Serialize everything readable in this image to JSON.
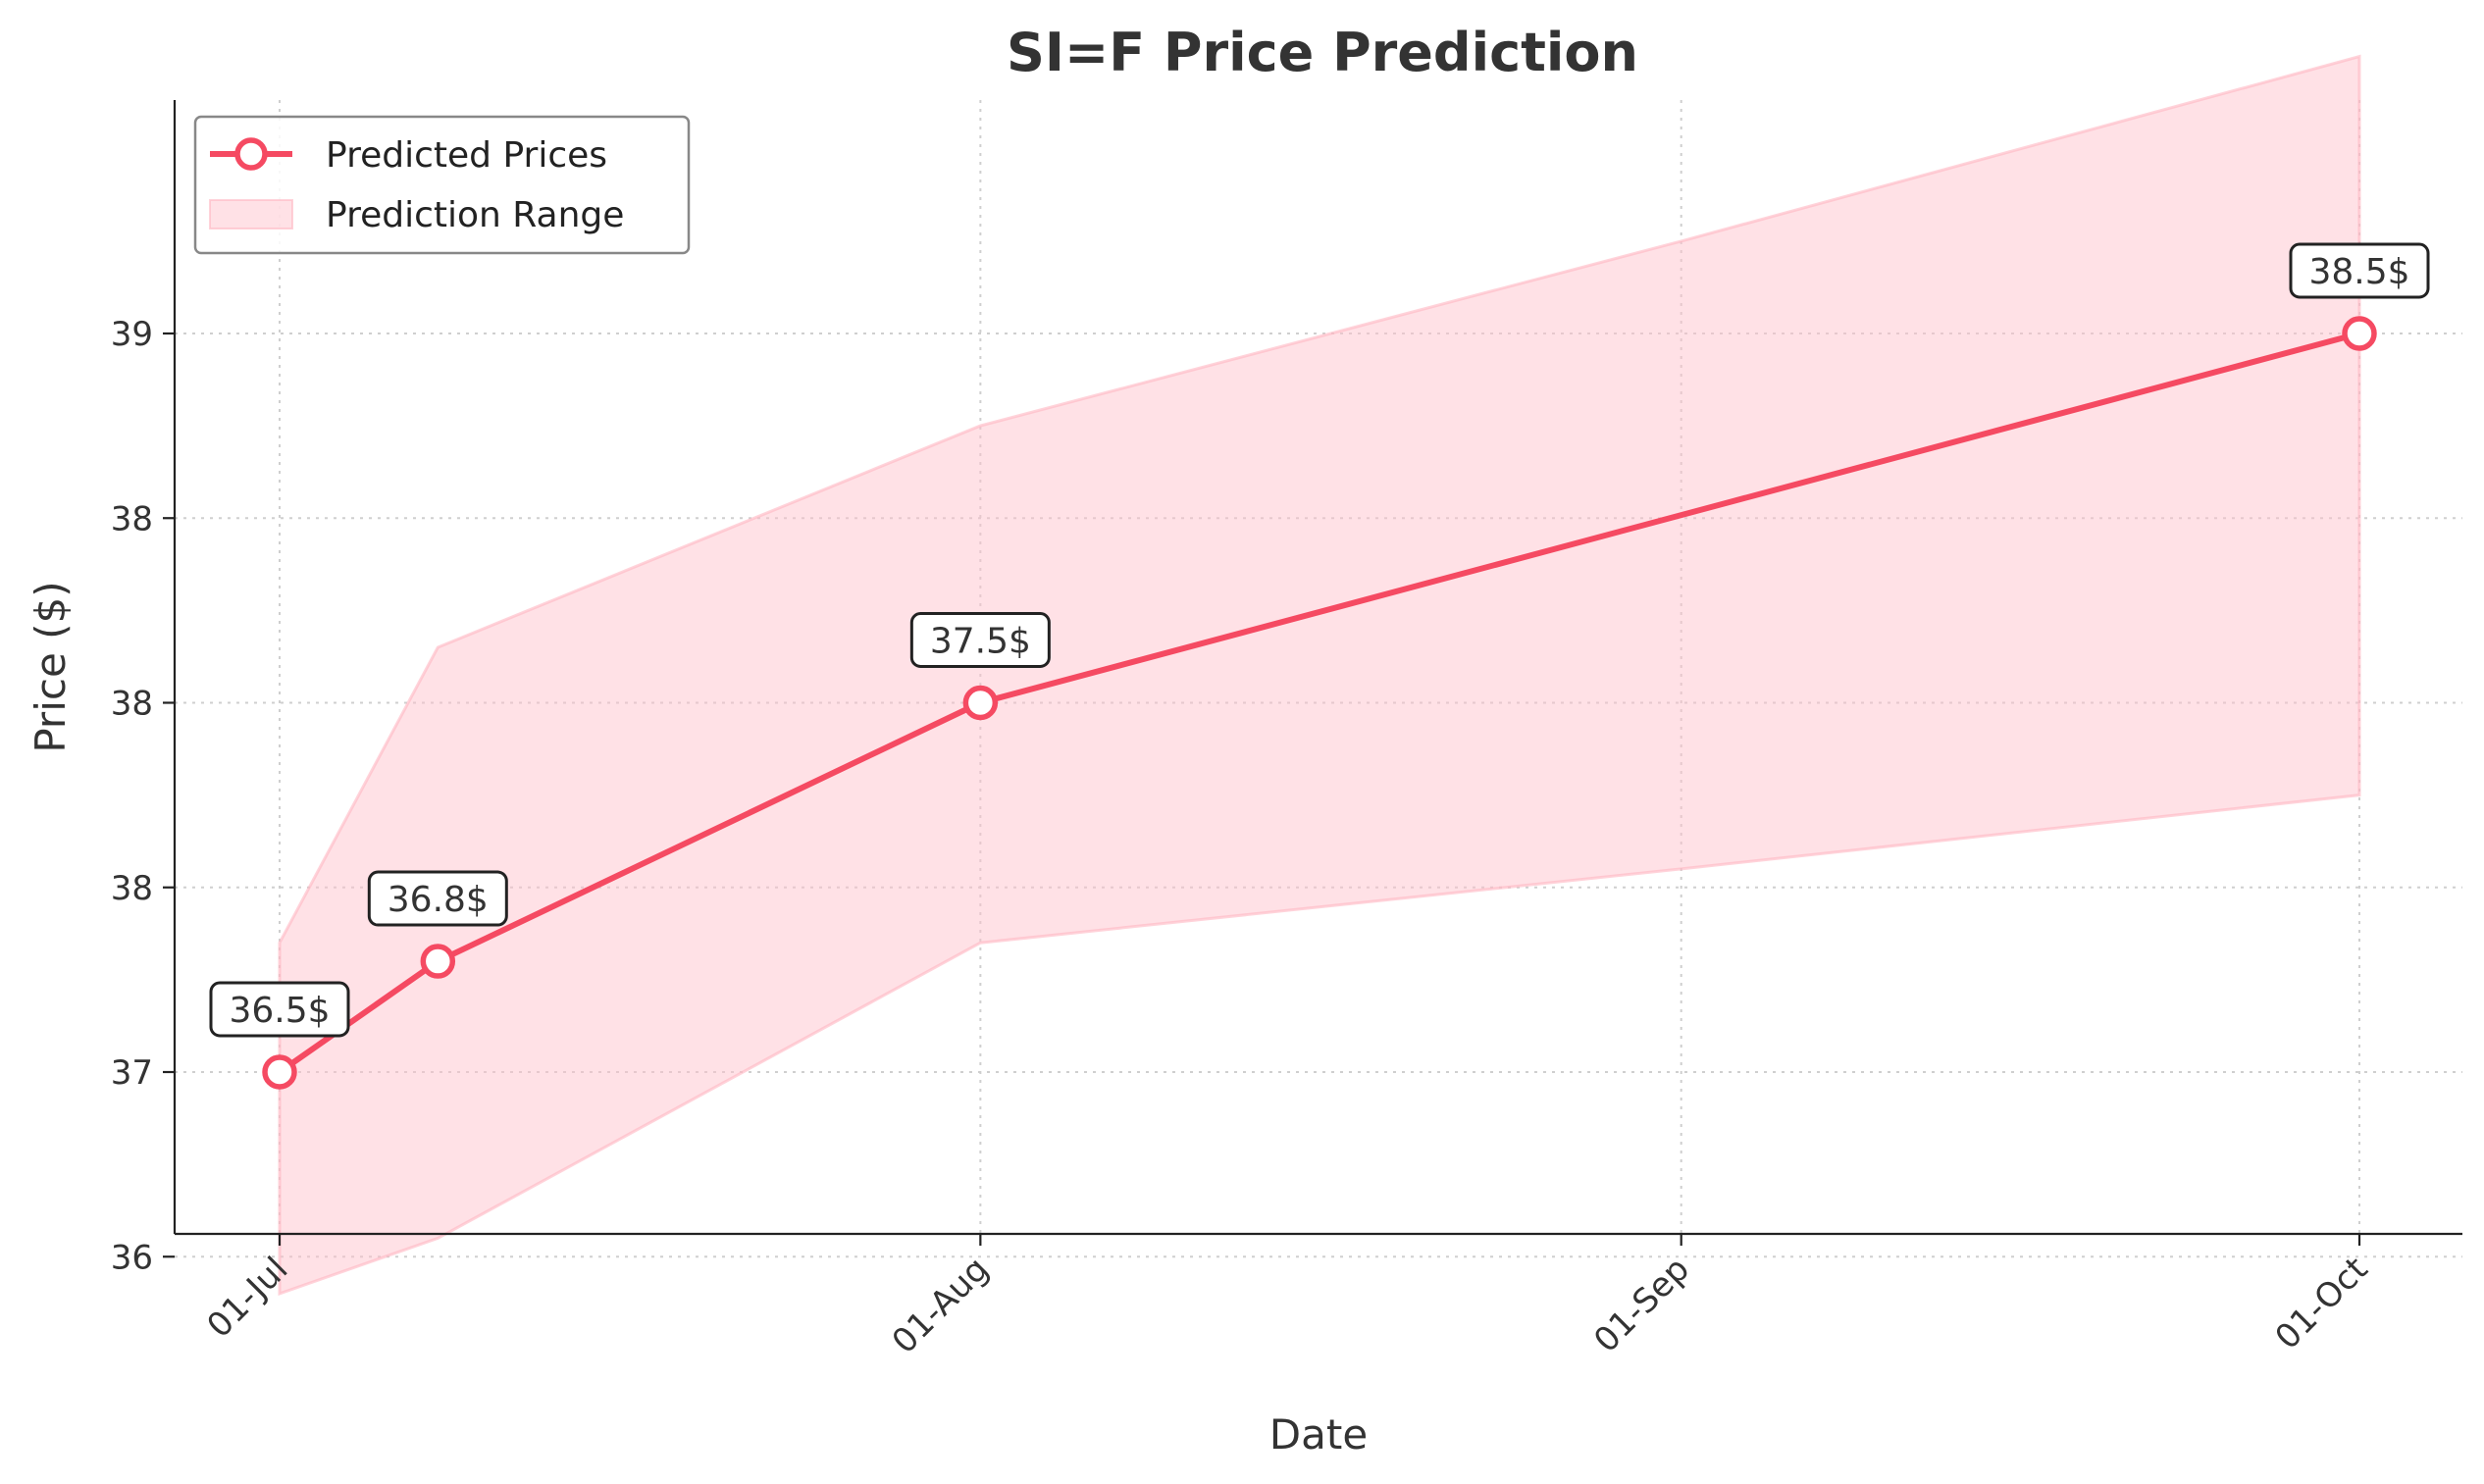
{
  "chart_data": {
    "type": "line",
    "title": "SI=F Price Prediction",
    "xlabel": "Date",
    "ylabel": "Price ($)",
    "x": [
      "2024-07-01",
      "2024-07-08",
      "2024-08-01",
      "2024-10-01"
    ],
    "x_ticks": [
      "01-Jul",
      "01-Aug",
      "01-Sep",
      "01-Oct"
    ],
    "x_tick_dates": [
      "2024-07-01",
      "2024-08-01",
      "2024-09-01",
      "2024-10-01"
    ],
    "y_ticks": [
      "36",
      "37",
      "38",
      "38",
      "38",
      "39"
    ],
    "series": [
      {
        "name": "Predicted Prices",
        "values": [
          36.5,
          36.8,
          37.5,
          38.5
        ],
        "color": "#f54a62"
      }
    ],
    "range": {
      "name": "Prediction Range",
      "x": [
        "2024-07-01",
        "2024-07-08",
        "2024-08-01",
        "2024-09-01",
        "2024-10-01"
      ],
      "lower": [
        35.9,
        36.05,
        36.85,
        37.05,
        37.25
      ],
      "upper": [
        36.85,
        37.65,
        38.25,
        38.75,
        39.25
      ],
      "color": "#ffb6c1"
    },
    "data_labels": [
      "36.5$",
      "36.8$",
      "37.5$",
      "38.5$"
    ],
    "ylim": [
      35.62,
      39.57
    ],
    "grid": true,
    "legend_position": "top-left"
  }
}
